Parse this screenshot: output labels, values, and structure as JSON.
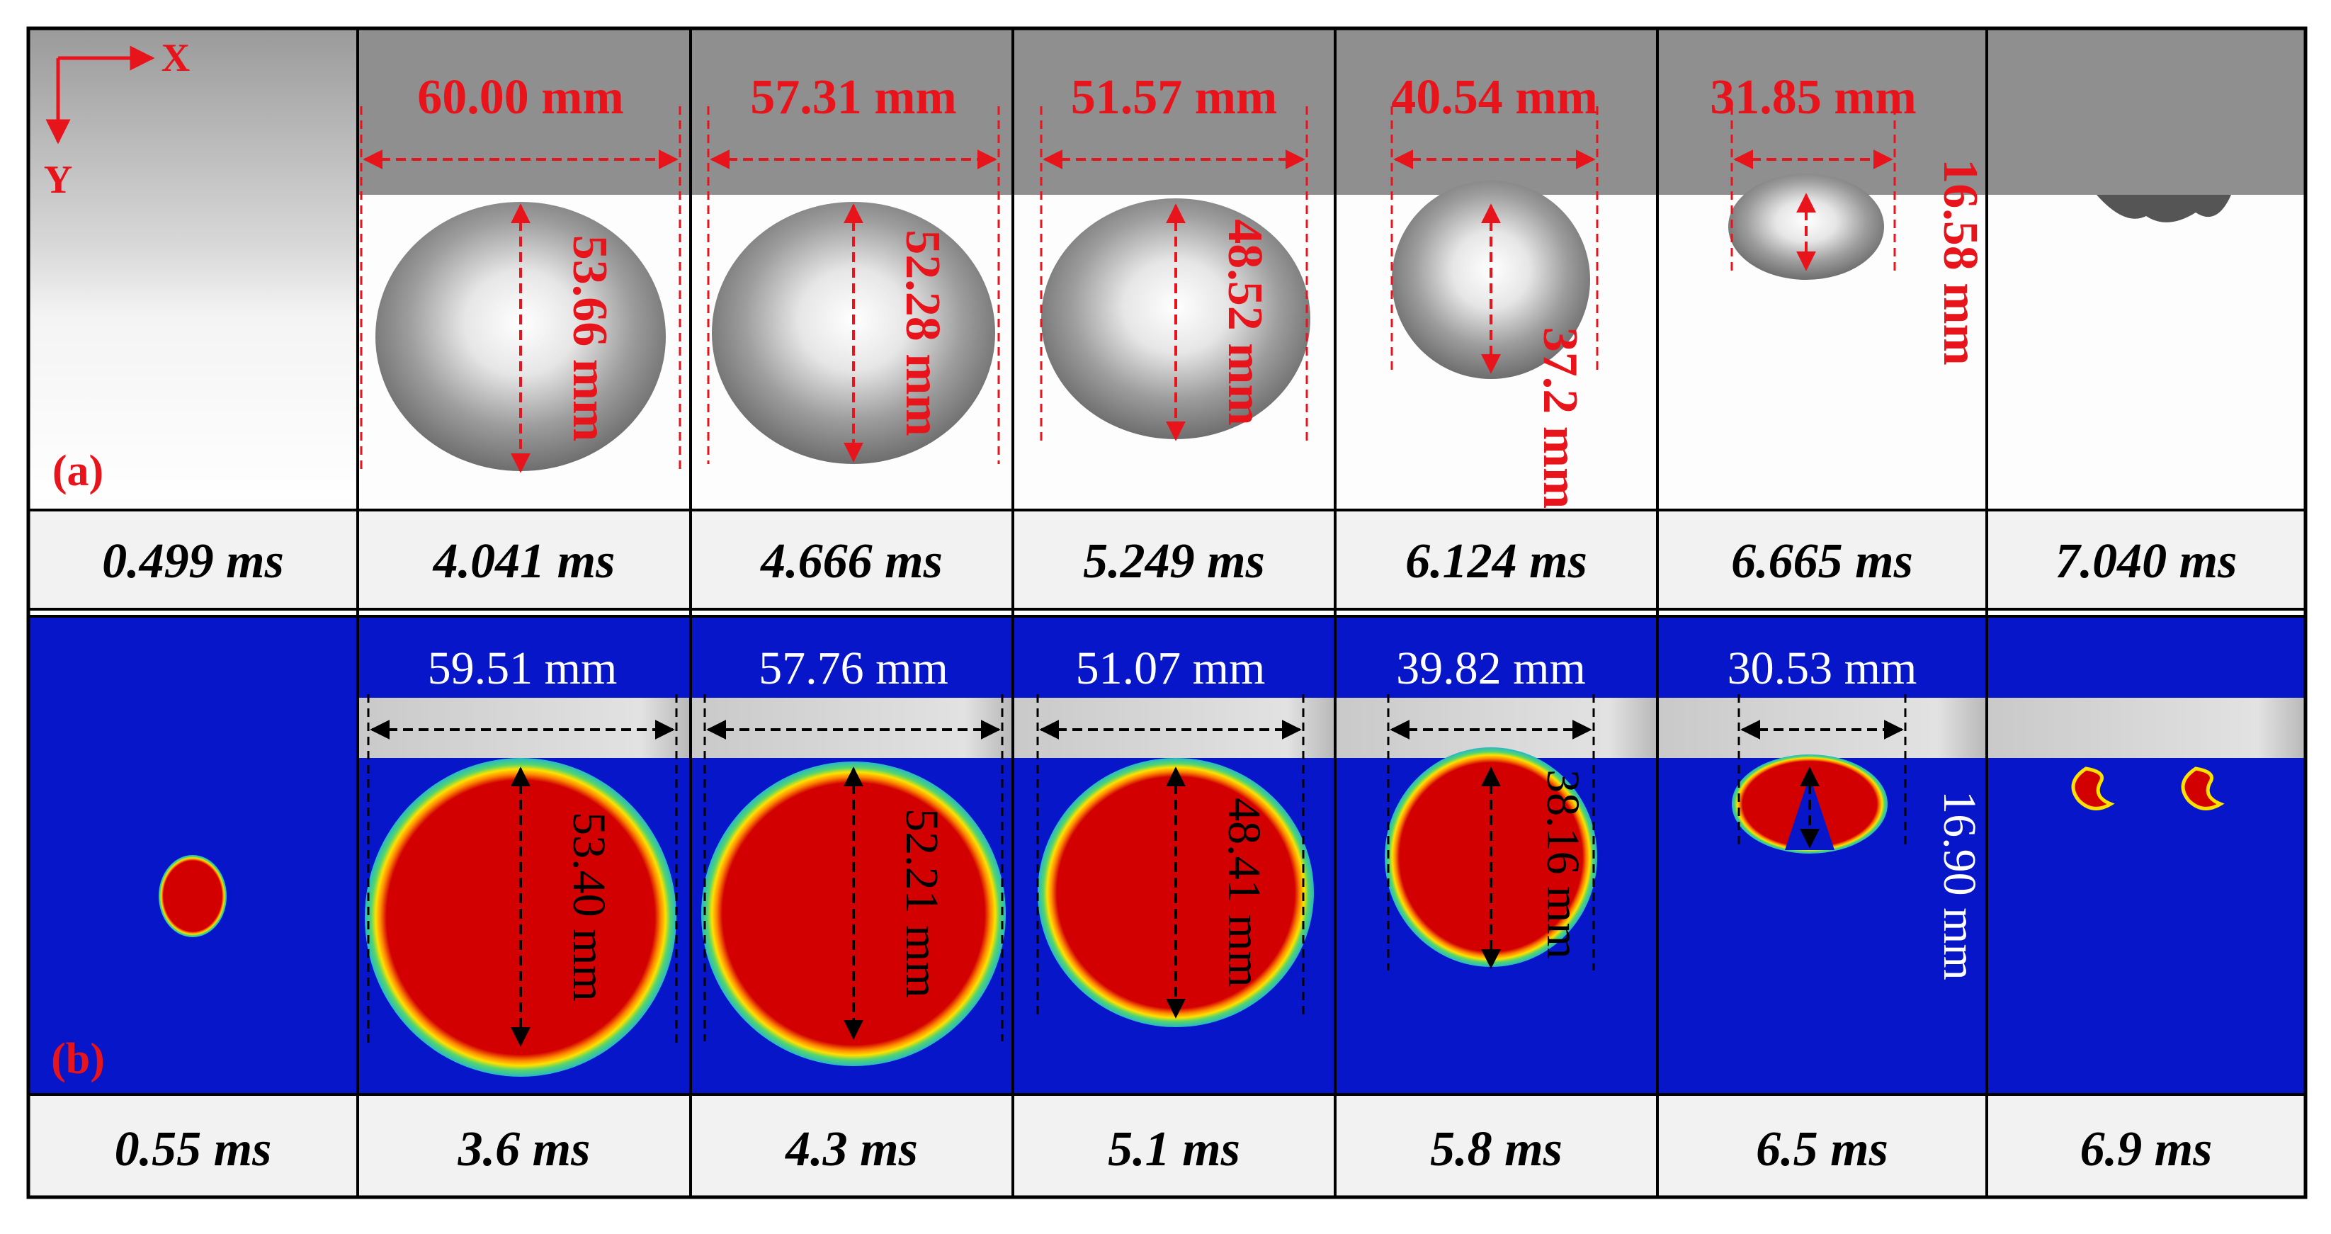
{
  "figure": {
    "axes": {
      "x_label": "X",
      "y_label": "Y"
    },
    "colors": {
      "experiment_label": "#e8141b",
      "sim_light_text": "#ffffff",
      "sim_dark_text": "#000000",
      "sim_background": "#0616c8",
      "sim_core": "#d20000",
      "wall_gray": "#cfcfcf"
    },
    "panels": [
      {
        "label": "(a)",
        "kind": "experiment",
        "times": [
          "0.499 ms",
          "4.041 ms",
          "4.666 ms",
          "5.249 ms",
          "6.124 ms",
          "6.665 ms",
          "7.040 ms"
        ],
        "widths": [
          "",
          "60.00 mm",
          "57.31 mm",
          "51.57 mm",
          "40.54 mm",
          "31.85 mm",
          ""
        ],
        "heights": [
          "",
          "53.66 mm",
          "52.28 mm",
          "48.52 mm",
          "37.2 mm",
          "16.58 mm",
          ""
        ]
      },
      {
        "label": "(b)",
        "kind": "simulation",
        "times": [
          "0.55 ms",
          "3.6 ms",
          "4.3 ms",
          "5.1 ms",
          "5.8 ms",
          "6.5 ms",
          "6.9 ms"
        ],
        "widths": [
          "",
          "59.51 mm",
          "57.76 mm",
          "51.07 mm",
          "39.82 mm",
          "30.53 mm",
          ""
        ],
        "heights": [
          "",
          "53.40 mm",
          "52.21 mm",
          "48.41 mm",
          "38.16 mm",
          "16.90 mm",
          ""
        ]
      }
    ]
  }
}
